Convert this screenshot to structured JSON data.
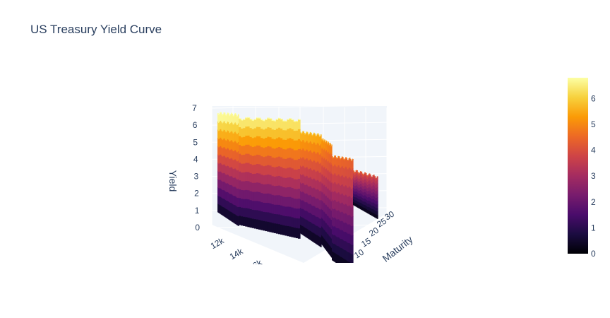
{
  "chart_data": {
    "type": "surface",
    "title": "US Treasury Yield Curve",
    "z_axis": {
      "label": "Yield",
      "ticks": [
        "0",
        "1",
        "2",
        "3",
        "4",
        "5",
        "6",
        "7"
      ],
      "range": [
        0,
        7
      ]
    },
    "x_axis": {
      "label": "",
      "ticks": [
        "12k",
        "14k",
        "16k"
      ]
    },
    "y_axis": {
      "label": "Maturity",
      "ticks": [
        "10",
        "15",
        "20",
        "25",
        "30"
      ]
    },
    "colorscale": {
      "name": "Inferno",
      "stops": [
        "#000004",
        "#1b0c41",
        "#4a0c6b",
        "#781c6d",
        "#a52c60",
        "#cf4446",
        "#ed6925",
        "#fb9b06",
        "#f7d13d",
        "#fcffa4"
      ]
    },
    "colorbar": {
      "ticks": [
        "0",
        "1",
        "2",
        "3",
        "4",
        "5",
        "6"
      ],
      "range": [
        0,
        6.8
      ]
    },
    "surface_profile": {
      "note": "",
      "segments": [
        {
          "x": [
            11000,
            11800
          ],
          "yield": [
            6.7,
            6.6
          ]
        },
        {
          "x": [
            11800,
            12600
          ],
          "yield": [
            6.4,
            6.3
          ]
        },
        {
          "x": [
            12600,
            14200
          ],
          "yield": [
            5.6,
            5.4
          ]
        },
        {
          "x": [
            14200,
            15400
          ],
          "yield": [
            5.2,
            4.8
          ]
        },
        {
          "x": [
            15400,
            16400
          ],
          "yield": [
            4.5,
            4.3
          ]
        },
        {
          "x": [
            16400,
            18000
          ],
          "yield": [
            4.0,
            3.6
          ]
        }
      ]
    }
  }
}
